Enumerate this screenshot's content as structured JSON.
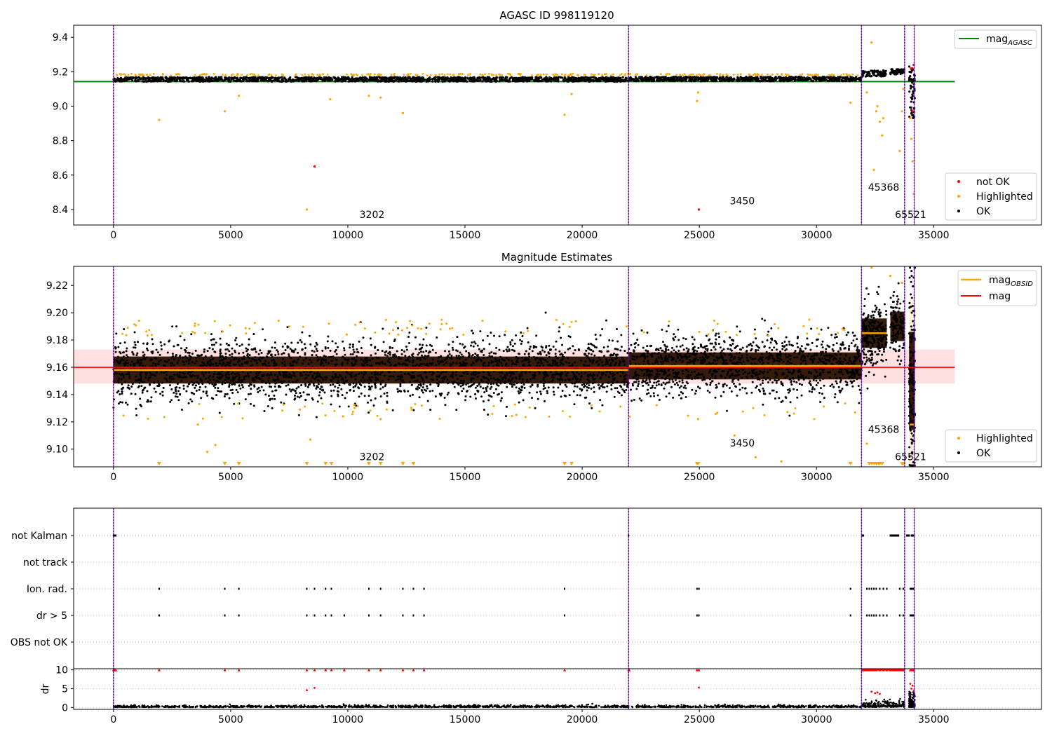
{
  "colors": {
    "ok": "#000000",
    "highlighted": "#ffa500",
    "not_ok": "#ff0000",
    "agasc_line": "#008000",
    "mag_line": "#ff0000",
    "obsid_line": "#ffa500",
    "obs_boundary": "#800080",
    "obs_boundary_2": "#0000ff"
  },
  "chart_data": [
    {
      "type": "scatter",
      "title": "AGASC ID 998119120",
      "xlim": [
        -1700,
        39600
      ],
      "ylim": [
        8.31,
        9.47
      ],
      "xticks": [
        0,
        5000,
        10000,
        15000,
        20000,
        25000,
        30000,
        35000
      ],
      "yticks": [
        8.4,
        8.6,
        8.8,
        9.0,
        9.2,
        9.4
      ],
      "ytick_labels": [
        "8.4",
        "8.6",
        "8.8",
        "9.0",
        "9.2",
        "9.4"
      ],
      "grid": false,
      "mag_agasc": 9.143,
      "mag_agasc_xrange": [
        -1700,
        35900
      ],
      "observation_boundaries": [
        0,
        21980,
        31920,
        33760,
        34170
      ],
      "obsid_annotations": [
        {
          "text": "3202",
          "x": 10500,
          "y": 8.35
        },
        {
          "text": "3450",
          "x": 26300,
          "y": 8.43
        },
        {
          "text": "45368",
          "x": 32200,
          "y": 8.51
        },
        {
          "text": "65521",
          "x": 33350,
          "y": 8.35
        }
      ],
      "segments": [
        {
          "x_range": [
            0,
            21980
          ],
          "center": 9.156,
          "spread": 0.022
        },
        {
          "x_range": [
            21980,
            31920
          ],
          "center": 9.158,
          "spread": 0.022
        },
        {
          "x_range": [
            31920,
            33000
          ],
          "center": 9.19,
          "spread": 0.03
        },
        {
          "x_range": [
            33150,
            33750
          ],
          "center": 9.2,
          "spread": 0.025
        },
        {
          "x_range": [
            33950,
            34200
          ],
          "center": 9.08,
          "spread": 0.15
        }
      ],
      "highlighted_points": [
        [
          1950,
          8.92
        ],
        [
          4750,
          8.97
        ],
        [
          5350,
          9.06
        ],
        [
          8250,
          8.4
        ],
        [
          9250,
          9.04
        ],
        [
          10900,
          9.06
        ],
        [
          11400,
          9.05
        ],
        [
          12350,
          8.96
        ],
        [
          19250,
          8.95
        ],
        [
          19550,
          9.07
        ],
        [
          24900,
          9.03
        ],
        [
          24950,
          9.08
        ],
        [
          31450,
          9.02
        ],
        [
          32150,
          9.08
        ],
        [
          32350,
          9.37
        ],
        [
          32450,
          8.63
        ],
        [
          32550,
          8.97
        ],
        [
          32600,
          9.0
        ],
        [
          32700,
          8.91
        ],
        [
          32800,
          8.83
        ],
        [
          32850,
          8.93
        ],
        [
          33550,
          8.74
        ],
        [
          33650,
          8.97
        ],
        [
          33700,
          9.1
        ],
        [
          34000,
          8.93
        ],
        [
          34050,
          8.81
        ],
        [
          34100,
          8.68
        ],
        [
          34150,
          8.49
        ]
      ],
      "not_ok_points": [
        [
          8580,
          8.65
        ],
        [
          24980,
          8.4
        ],
        [
          34050,
          9.22
        ],
        [
          34100,
          8.97
        ],
        [
          34150,
          9.24
        ]
      ],
      "legends": [
        {
          "position": "upper right",
          "entries": [
            "mag_AGASC"
          ]
        },
        {
          "position": "lower right",
          "entries": [
            "not OK",
            "Highlighted",
            "OK"
          ]
        }
      ]
    },
    {
      "type": "scatter",
      "title": "Magnitude Estimates",
      "xlim": [
        -1700,
        39600
      ],
      "ylim": [
        9.087,
        9.234
      ],
      "xticks": [
        0,
        5000,
        10000,
        15000,
        20000,
        25000,
        30000,
        35000
      ],
      "yticks": [
        9.1,
        9.12,
        9.14,
        9.16,
        9.18,
        9.2,
        9.22
      ],
      "ytick_labels": [
        "9.10",
        "9.12",
        "9.14",
        "9.16",
        "9.18",
        "9.20",
        "9.22"
      ],
      "grid": false,
      "mag": 9.16,
      "mag_band": [
        9.148,
        9.173
      ],
      "mag_xrange": [
        -1700,
        35900
      ],
      "mag_obsid": [
        {
          "x_range": [
            0,
            21980
          ],
          "value": 9.158
        },
        {
          "x_range": [
            21980,
            31920
          ],
          "value": 9.161
        },
        {
          "x_range": [
            31920,
            33000
          ],
          "value": 9.185
        },
        {
          "x_range": [
            33980,
            34150
          ],
          "value": 9.118
        }
      ],
      "observation_boundaries": [
        0,
        21980,
        31920,
        33760,
        34170
      ],
      "obsid_annotations": [
        {
          "text": "3202",
          "x": 10500,
          "y": 9.092
        },
        {
          "text": "3450",
          "x": 26300,
          "y": 9.102
        },
        {
          "text": "45368",
          "x": 32200,
          "y": 9.112
        },
        {
          "text": "65521",
          "x": 33350,
          "y": 9.092
        }
      ],
      "legends": [
        {
          "position": "upper right",
          "entries": [
            "mag_OBSID",
            "mag"
          ]
        },
        {
          "position": "lower right",
          "entries": [
            "Highlighted",
            "OK"
          ]
        }
      ]
    },
    {
      "type": "scatter",
      "title": "",
      "xlim": [
        -1700,
        39600
      ],
      "categories": [
        "not Kalman",
        "not track",
        "Ion. rad.",
        "dr > 5",
        "OBS not OK"
      ],
      "flag_x": {
        "not Kalman": [
          0,
          50,
          100,
          21980,
          31950,
          32000,
          33150,
          33200,
          33250,
          33300,
          33350,
          33400,
          33450,
          33500,
          33850,
          33900,
          33950,
          34050,
          34100,
          34150
        ],
        "not track": [],
        "Ion. rad.": [
          1950,
          4750,
          5350,
          8250,
          8580,
          9050,
          9300,
          10900,
          11400,
          12350,
          12800,
          13250,
          19250,
          24900,
          24980,
          31450,
          32150,
          32250,
          32350,
          32450,
          32550,
          32700,
          32850,
          33000,
          33550,
          33700,
          34000,
          34050,
          34100,
          34150
        ],
        "dr > 5": [
          1950,
          4750,
          5350,
          8250,
          8580,
          9050,
          9300,
          9850,
          10900,
          11400,
          12350,
          12800,
          13250,
          19250,
          24900,
          24980,
          31450,
          32150,
          32250,
          32350,
          32450,
          32550,
          32700,
          32850,
          33000,
          33550,
          33700,
          34000,
          34050,
          34100,
          34150
        ],
        "OBS not OK": []
      },
      "observation_boundaries": [
        0,
        21980,
        31920,
        33760,
        34170
      ]
    },
    {
      "type": "scatter",
      "title": "",
      "xlim": [
        -1700,
        39600
      ],
      "ylim": [
        -0.5,
        10.3
      ],
      "xticks": [
        0,
        5000,
        10000,
        15000,
        20000,
        25000,
        30000,
        35000
      ],
      "yticks": [
        0,
        5,
        10
      ],
      "ytick_labels": [
        "0",
        "5",
        "10"
      ],
      "ylabel": "dr",
      "clip_value": 10,
      "dr_flagged_x": [
        0,
        50,
        100,
        1950,
        4750,
        5350,
        8250,
        8580,
        9050,
        9300,
        9850,
        10900,
        11400,
        12350,
        12800,
        13250,
        19250,
        21980,
        22010,
        24900,
        24980,
        31950,
        32050,
        32150,
        32250,
        32350,
        32450,
        32550,
        32700,
        32850,
        33000,
        33150,
        33250,
        33350,
        33450,
        33550,
        33650,
        33700,
        34000,
        34050,
        34100,
        34150
      ],
      "dr_red_midrange": [
        [
          8250,
          4.6
        ],
        [
          8580,
          5.2
        ],
        [
          24980,
          5.3
        ],
        [
          32350,
          4.2
        ],
        [
          32500,
          3.8
        ],
        [
          32600,
          4.0
        ],
        [
          32700,
          3.6
        ],
        [
          34000,
          6.3
        ],
        [
          34050,
          5.0
        ],
        [
          34100,
          5.8
        ],
        [
          34150,
          4.4
        ]
      ],
      "dr_typical": 0.3,
      "observation_boundaries": [
        0,
        21980,
        31920,
        33760,
        34170
      ]
    }
  ]
}
